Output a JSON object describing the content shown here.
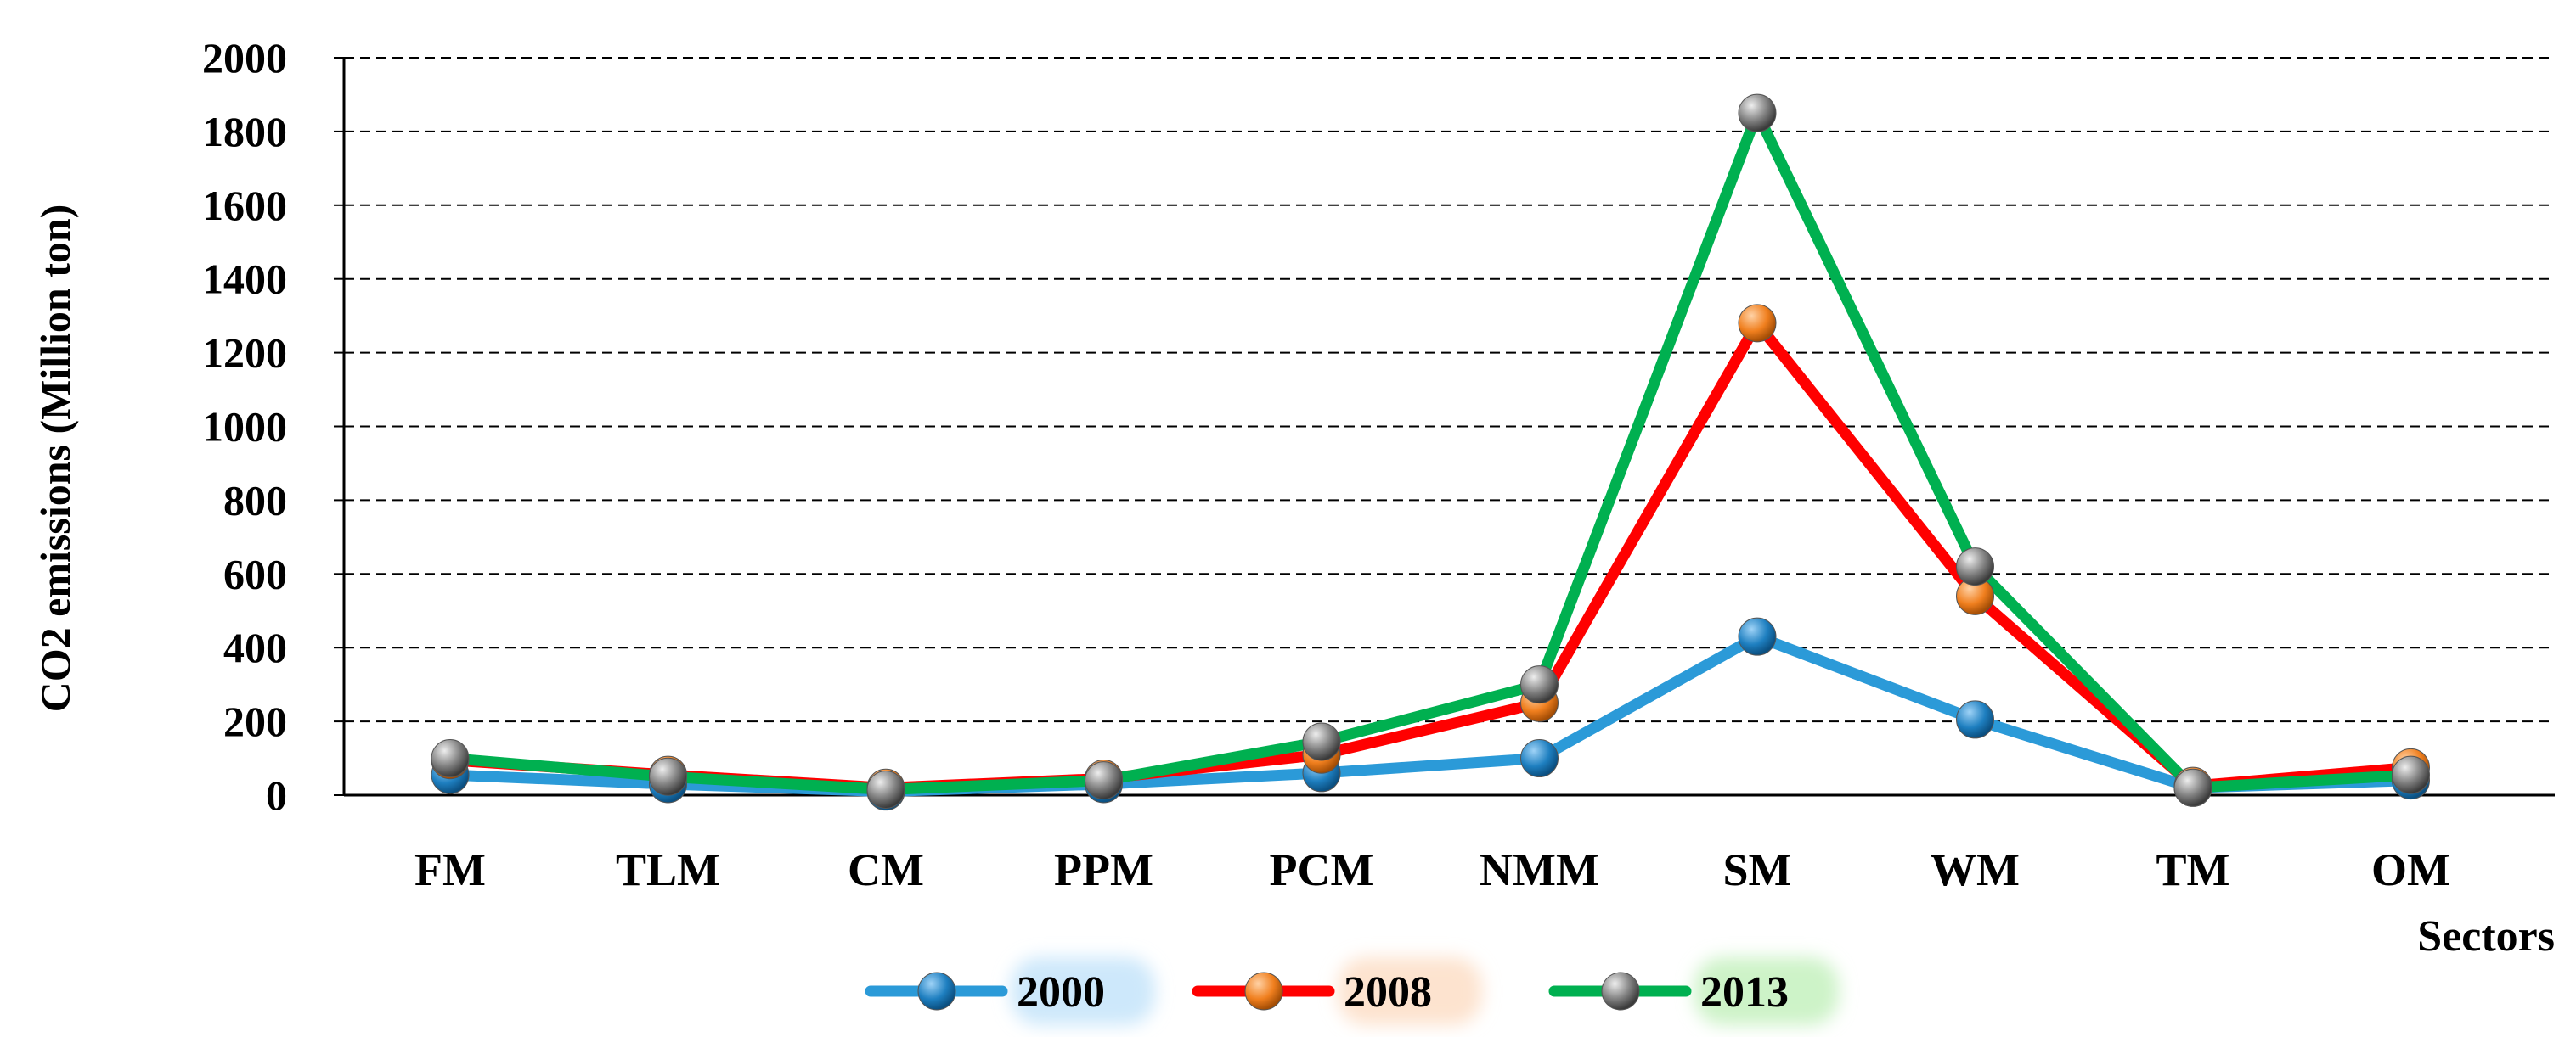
{
  "chart_data": {
    "type": "line",
    "title": "",
    "xlabel": "Sectors",
    "ylabel": "CO2 emissions (Million ton)",
    "categories": [
      "FM",
      "TLM",
      "CM",
      "PPM",
      "PCM",
      "NMM",
      "SM",
      "WM",
      "TM",
      "OM"
    ],
    "ylim": [
      0,
      2000
    ],
    "yticks": [
      0,
      200,
      400,
      600,
      800,
      1000,
      1200,
      1400,
      1600,
      1800,
      2000
    ],
    "grid": "horizontal dashed",
    "legend_position": "bottom",
    "series": [
      {
        "name": "2000",
        "color": "#2b9ad8",
        "marker_color": "#1e7fc0",
        "legend_highlight": "#cde8fb",
        "values": [
          55,
          30,
          10,
          30,
          60,
          100,
          430,
          205,
          20,
          40
        ]
      },
      {
        "name": "2008",
        "color": "#ff0000",
        "marker_color": "#f07f1e",
        "legend_highlight": "#fde3cf",
        "values": [
          95,
          55,
          20,
          45,
          110,
          250,
          1280,
          540,
          25,
          75
        ]
      },
      {
        "name": "2013",
        "color": "#00b050",
        "marker_color": "#7f7f7f",
        "legend_highlight": "#cdf3c8",
        "values": [
          100,
          50,
          15,
          40,
          145,
          300,
          1850,
          620,
          20,
          55
        ]
      }
    ]
  }
}
